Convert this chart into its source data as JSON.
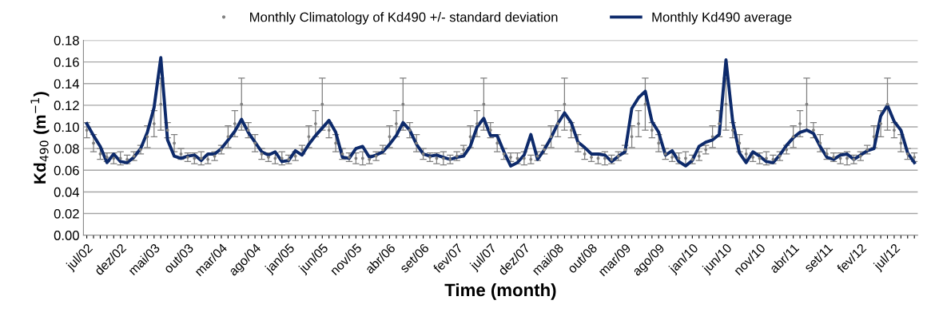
{
  "chart_data": {
    "type": "line",
    "xlabel": "Time (month)",
    "ylabel": "Kd$_{490}$ (m$^{−1}$)",
    "categories": [
      "jul/02",
      null,
      null,
      null,
      null,
      "dez/02",
      null,
      null,
      null,
      null,
      "mai/03",
      null,
      null,
      null,
      null,
      "out/03",
      null,
      null,
      null,
      null,
      "mar/04",
      null,
      null,
      null,
      null,
      "ago/04",
      null,
      null,
      null,
      null,
      "jan/05",
      null,
      null,
      null,
      null,
      "jun/05",
      null,
      null,
      null,
      null,
      "nov/05",
      null,
      null,
      null,
      null,
      "abr/06",
      null,
      null,
      null,
      null,
      "set/06",
      null,
      null,
      null,
      null,
      "fev/07",
      null,
      null,
      null,
      null,
      "jul/07",
      null,
      null,
      null,
      null,
      "dez/07",
      null,
      null,
      null,
      null,
      "mai/08",
      null,
      null,
      null,
      null,
      "out/08",
      null,
      null,
      null,
      null,
      "mar/09",
      null,
      null,
      null,
      null,
      "ago/09",
      null,
      null,
      null,
      null,
      "jan/10",
      null,
      null,
      null,
      null,
      "jun/10",
      null,
      null,
      null,
      null,
      "nov/10",
      null,
      null,
      null,
      null,
      "abr/11",
      null,
      null,
      null,
      null,
      "set/11",
      null,
      null,
      null,
      null,
      "fev/12",
      null,
      null,
      null,
      null,
      "jul/12",
      null,
      null,
      null
    ],
    "series": [
      {
        "name": "Monthly Climatology of Kd490 +/- standard deviation",
        "type": "scatter",
        "color": "#7f7f7f",
        "marker": "circle",
        "values": [
          0.097,
          0.085,
          0.075,
          0.072,
          0.071,
          0.071,
          0.07,
          0.073,
          0.079,
          0.091,
          0.103,
          0.121,
          0.097,
          0.085,
          0.075,
          0.072,
          0.071,
          0.071,
          0.07,
          0.073,
          0.079,
          0.091,
          0.103,
          0.121,
          0.097,
          0.085,
          0.075,
          0.072,
          0.071,
          0.071,
          0.07,
          0.073,
          0.079,
          0.091,
          0.103,
          0.121,
          0.097,
          0.085,
          0.075,
          0.072,
          0.071,
          0.071,
          0.07,
          0.073,
          0.079,
          0.091,
          0.103,
          0.121,
          0.097,
          0.085,
          0.075,
          0.072,
          0.071,
          0.071,
          0.07,
          0.073,
          0.079,
          0.091,
          0.103,
          0.121,
          0.097,
          0.085,
          0.075,
          0.072,
          0.071,
          0.071,
          0.07,
          0.073,
          0.079,
          0.091,
          0.103,
          0.121,
          0.097,
          0.085,
          0.075,
          0.072,
          0.071,
          0.071,
          0.07,
          0.073,
          0.079,
          0.091,
          0.103,
          0.121,
          0.097,
          0.085,
          0.075,
          0.072,
          0.071,
          0.071,
          0.07,
          0.073,
          0.079,
          0.091,
          0.103,
          0.121,
          0.097,
          0.085,
          0.075,
          0.072,
          0.071,
          0.071,
          0.07,
          0.073,
          0.079,
          0.091,
          0.103,
          0.121,
          0.097,
          0.085,
          0.075,
          0.072,
          0.071,
          0.071,
          0.07,
          0.073,
          0.079,
          0.091,
          0.103,
          0.121,
          0.097,
          0.085,
          0.075,
          0.072
        ],
        "errors": [
          0.007,
          0.008,
          0.005,
          0.004,
          0.005,
          0.006,
          0.004,
          0.004,
          0.004,
          0.01,
          0.012,
          0.024,
          0.007,
          0.008,
          0.005,
          0.004,
          0.005,
          0.006,
          0.004,
          0.004,
          0.004,
          0.01,
          0.012,
          0.024,
          0.007,
          0.008,
          0.005,
          0.004,
          0.005,
          0.006,
          0.004,
          0.004,
          0.004,
          0.01,
          0.012,
          0.024,
          0.007,
          0.008,
          0.005,
          0.004,
          0.005,
          0.006,
          0.004,
          0.004,
          0.004,
          0.01,
          0.012,
          0.024,
          0.007,
          0.008,
          0.005,
          0.004,
          0.005,
          0.006,
          0.004,
          0.004,
          0.004,
          0.01,
          0.012,
          0.024,
          0.007,
          0.008,
          0.005,
          0.004,
          0.005,
          0.006,
          0.004,
          0.004,
          0.004,
          0.01,
          0.012,
          0.024,
          0.007,
          0.008,
          0.005,
          0.004,
          0.005,
          0.006,
          0.004,
          0.004,
          0.004,
          0.01,
          0.012,
          0.024,
          0.007,
          0.008,
          0.005,
          0.004,
          0.005,
          0.006,
          0.004,
          0.004,
          0.004,
          0.01,
          0.012,
          0.024,
          0.007,
          0.008,
          0.005,
          0.004,
          0.005,
          0.006,
          0.004,
          0.004,
          0.004,
          0.01,
          0.012,
          0.024,
          0.007,
          0.008,
          0.005,
          0.004,
          0.005,
          0.006,
          0.004,
          0.004,
          0.004,
          0.01,
          0.012,
          0.024,
          0.007,
          0.008,
          0.005,
          0.004
        ]
      },
      {
        "name": "Monthly Kd490 average",
        "color": "#0d2a6b",
        "marker": "none",
        "line_style": "solid",
        "values": [
          0.103,
          0.092,
          0.082,
          0.067,
          0.075,
          0.068,
          0.067,
          0.072,
          0.08,
          0.095,
          0.118,
          0.164,
          0.088,
          0.073,
          0.071,
          0.073,
          0.074,
          0.069,
          0.075,
          0.075,
          0.08,
          0.088,
          0.096,
          0.107,
          0.095,
          0.086,
          0.077,
          0.074,
          0.077,
          0.068,
          0.069,
          0.078,
          0.074,
          0.084,
          0.092,
          0.099,
          0.106,
          0.095,
          0.072,
          0.071,
          0.08,
          0.082,
          0.072,
          0.074,
          0.077,
          0.084,
          0.092,
          0.104,
          0.097,
          0.084,
          0.075,
          0.073,
          0.074,
          0.072,
          0.07,
          0.072,
          0.073,
          0.082,
          0.1,
          0.108,
          0.092,
          0.092,
          0.077,
          0.064,
          0.067,
          0.074,
          0.093,
          0.07,
          0.079,
          0.09,
          0.103,
          0.113,
          0.104,
          0.086,
          0.081,
          0.075,
          0.075,
          0.074,
          0.068,
          0.073,
          0.077,
          0.117,
          0.127,
          0.133,
          0.105,
          0.095,
          0.074,
          0.078,
          0.068,
          0.064,
          0.069,
          0.082,
          0.086,
          0.088,
          0.093,
          0.162,
          0.105,
          0.076,
          0.067,
          0.077,
          0.073,
          0.068,
          0.067,
          0.074,
          0.083,
          0.09,
          0.095,
          0.097,
          0.094,
          0.082,
          0.072,
          0.07,
          0.074,
          0.075,
          0.07,
          0.074,
          0.078,
          0.08,
          0.11,
          0.12,
          0.105,
          0.097,
          0.076,
          0.067
        ]
      }
    ],
    "ylim": [
      0,
      0.18
    ],
    "yticks": [
      {
        "value": 0,
        "label": "0.00"
      },
      {
        "value": 0.02,
        "label": "0.02"
      },
      {
        "value": 0.04,
        "label": "0.04"
      },
      {
        "value": 0.06,
        "label": "0.06"
      },
      {
        "value": 0.08,
        "label": "0.08"
      },
      {
        "value": 0.1,
        "label": "0.10"
      },
      {
        "value": 0.12,
        "label": "0.12"
      },
      {
        "value": 0.14,
        "label": "0.14"
      },
      {
        "value": 0.16,
        "label": "0.16"
      },
      {
        "value": 0.18,
        "label": "0.18"
      }
    ],
    "grid": "y",
    "legend": "top"
  }
}
